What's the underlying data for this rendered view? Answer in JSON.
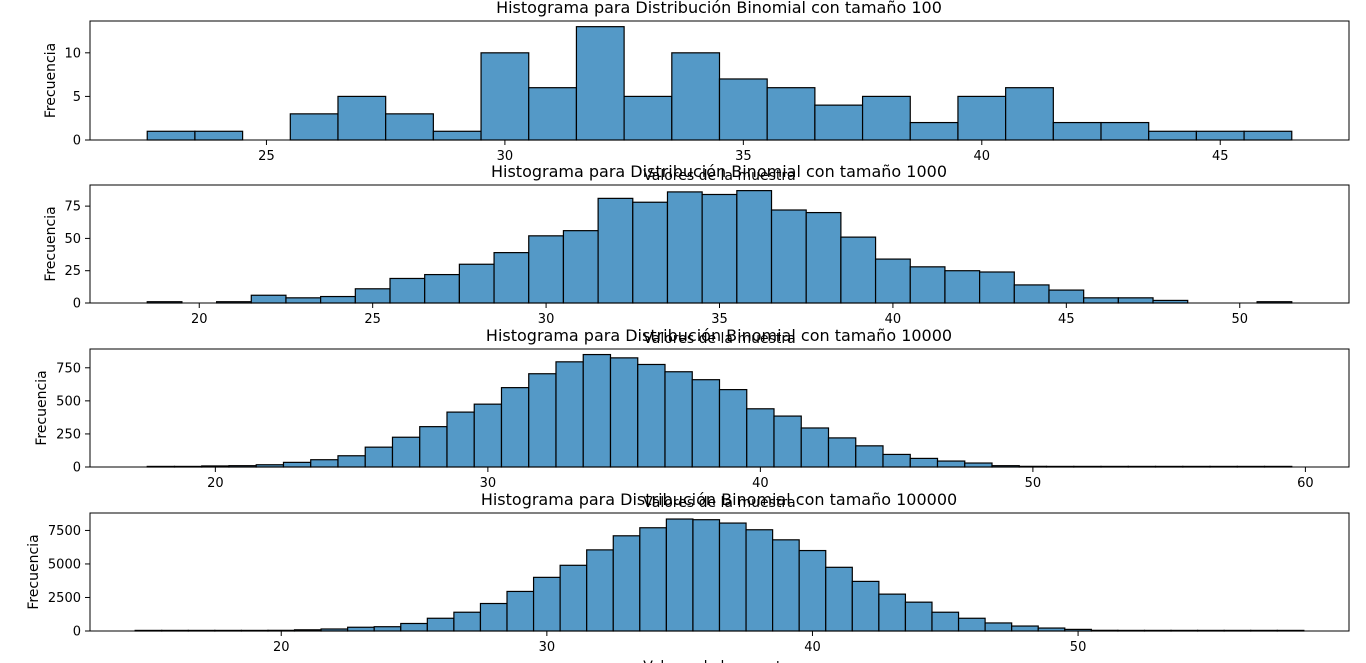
{
  "chart_data": [
    {
      "type": "bar",
      "title": "Histograma para Distribución Binomial con tamaño 100",
      "xlabel": "Valores de la muestra",
      "ylabel": "Frecuencia",
      "xlim": [
        21.3,
        47.7
      ],
      "ylim": [
        0,
        13.65
      ],
      "xticks": [
        25,
        30,
        35,
        40,
        45
      ],
      "yticks": [
        0,
        5,
        10
      ],
      "bin_start": 22.5,
      "bin_width": 1,
      "values": [
        1,
        1,
        0,
        3,
        5,
        3,
        1,
        10,
        6,
        13,
        5,
        10,
        7,
        6,
        4,
        5,
        2,
        5,
        6,
        2,
        2,
        1,
        1,
        1
      ]
    },
    {
      "type": "bar",
      "title": "Histograma para Distribución Binomial con tamaño 1000",
      "xlabel": "Valores de la muestra",
      "ylabel": "Frecuencia",
      "xlim": [
        16.85,
        53.15
      ],
      "ylim": [
        0,
        91.35
      ],
      "xticks": [
        20,
        25,
        30,
        35,
        40,
        45,
        50
      ],
      "yticks": [
        0,
        25,
        50,
        75
      ],
      "bin_start": 18.5,
      "bin_width": 1,
      "values": [
        1,
        0,
        1,
        6,
        4,
        5,
        11,
        19,
        22,
        30,
        39,
        52,
        56,
        81,
        78,
        86,
        84,
        87,
        72,
        70,
        51,
        34,
        28,
        25,
        24,
        14,
        10,
        4,
        4,
        2,
        0,
        0,
        1
      ]
    },
    {
      "type": "bar",
      "title": "Histograma para Distribución Binomial con tamaño 10000",
      "xlabel": "Valores de la muestra",
      "ylabel": "Frecuencia",
      "xlim": [
        15.4,
        61.6
      ],
      "ylim": [
        0,
        892
      ],
      "xticks": [
        20,
        30,
        40,
        50,
        60
      ],
      "yticks": [
        0,
        250,
        500,
        750
      ],
      "bin_start": 17.5,
      "bin_width": 1,
      "values": [
        1,
        2,
        8,
        10,
        17,
        35,
        55,
        85,
        150,
        225,
        305,
        415,
        475,
        600,
        705,
        795,
        850,
        825,
        775,
        720,
        660,
        585,
        440,
        385,
        295,
        220,
        160,
        95,
        65,
        45,
        30,
        10,
        5,
        3,
        1,
        1,
        1,
        1,
        1,
        1,
        1,
        1
      ]
    },
    {
      "type": "bar",
      "title": "Histograma para Distribución Binomial con tamaño 100000",
      "xlabel": "Valores de la muestra",
      "ylabel": "Frecuencia",
      "xlim": [
        12.8,
        60.2
      ],
      "ylim": [
        0,
        8800
      ],
      "xticks": [
        20,
        30,
        40,
        50
      ],
      "yticks": [
        0,
        2500,
        5000,
        7500
      ],
      "bin_start": 14.5,
      "bin_width": 1,
      "values": [
        1,
        2,
        5,
        10,
        25,
        50,
        90,
        150,
        280,
        320,
        560,
        950,
        1400,
        2050,
        2950,
        4000,
        4900,
        6050,
        7100,
        7700,
        8350,
        8300,
        8050,
        7550,
        6800,
        6000,
        4750,
        3700,
        2750,
        2150,
        1400,
        950,
        600,
        370,
        220,
        120,
        50,
        25,
        10,
        5,
        2,
        1,
        1,
        1
      ]
    }
  ]
}
